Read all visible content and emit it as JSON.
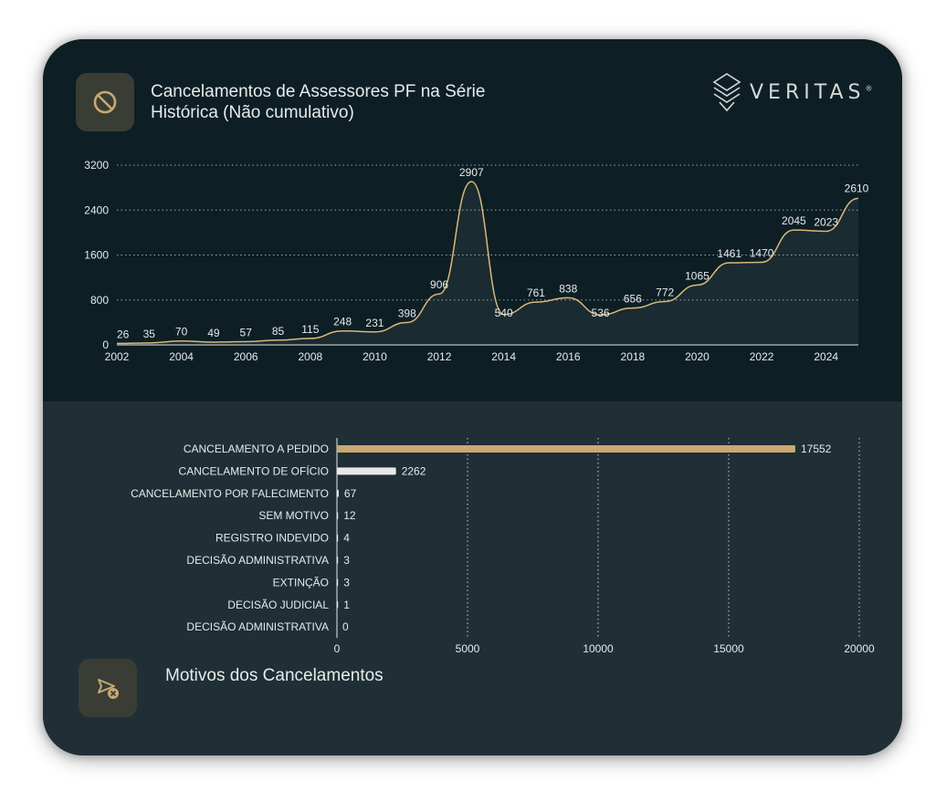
{
  "brand": {
    "name": "VERITAS",
    "reg": "®"
  },
  "colors": {
    "gold": "#c9a873",
    "line": "#d9b77a",
    "white_bar": "#e8e8e8",
    "text": "#e6ebeb",
    "grid": "#8a9a9a"
  },
  "header": {
    "title": "Cancelamentos de Assessores PF na Série Histórica (Não cumulativo)",
    "icon": "prohibited-icon"
  },
  "footer": {
    "title": "Motivos dos Cancelamentos",
    "icon": "send-cancel-icon"
  },
  "chart_data": [
    {
      "type": "line",
      "title": "Cancelamentos de Assessores PF na Série Histórica (Não cumulativo)",
      "x": [
        2002,
        2003,
        2004,
        2005,
        2006,
        2007,
        2008,
        2009,
        2010,
        2011,
        2012,
        2013,
        2014,
        2015,
        2016,
        2017,
        2018,
        2019,
        2020,
        2021,
        2022,
        2023,
        2024,
        2025
      ],
      "values": [
        26,
        35,
        70,
        49,
        57,
        85,
        115,
        248,
        231,
        398,
        906,
        2907,
        540,
        761,
        838,
        536,
        656,
        772,
        1065,
        1461,
        1470,
        2045,
        2023,
        2610
      ],
      "x_ticks": [
        "2002",
        "2004",
        "2006",
        "2008",
        "2010",
        "2012",
        "2014",
        "2016",
        "2018",
        "2020",
        "2022",
        "2024"
      ],
      "y_ticks": [
        "0",
        "800",
        "1600",
        "2400",
        "3200"
      ],
      "ylim": [
        0,
        3200
      ],
      "grid": "horizontal dotted"
    },
    {
      "type": "bar",
      "orientation": "horizontal",
      "title": "Motivos dos Cancelamentos",
      "categories": [
        "CANCELAMENTO A PEDIDO",
        "CANCELAMENTO DE OFÍCIO",
        "CANCELAMENTO POR FALECIMENTO",
        "SEM MOTIVO",
        "REGISTRO INDEVIDO",
        "DECISÃO ADMINISTRATIVA",
        "EXTINÇÃO",
        "DECISÃO JUDICIAL",
        "DECISÃO ADMINISTRATIVA"
      ],
      "values": [
        17552,
        2262,
        67,
        12,
        4,
        3,
        3,
        1,
        0
      ],
      "x_ticks": [
        "0",
        "5000",
        "10000",
        "15000",
        "20000"
      ],
      "xlim": [
        0,
        20000
      ],
      "grid": "vertical dotted"
    }
  ]
}
